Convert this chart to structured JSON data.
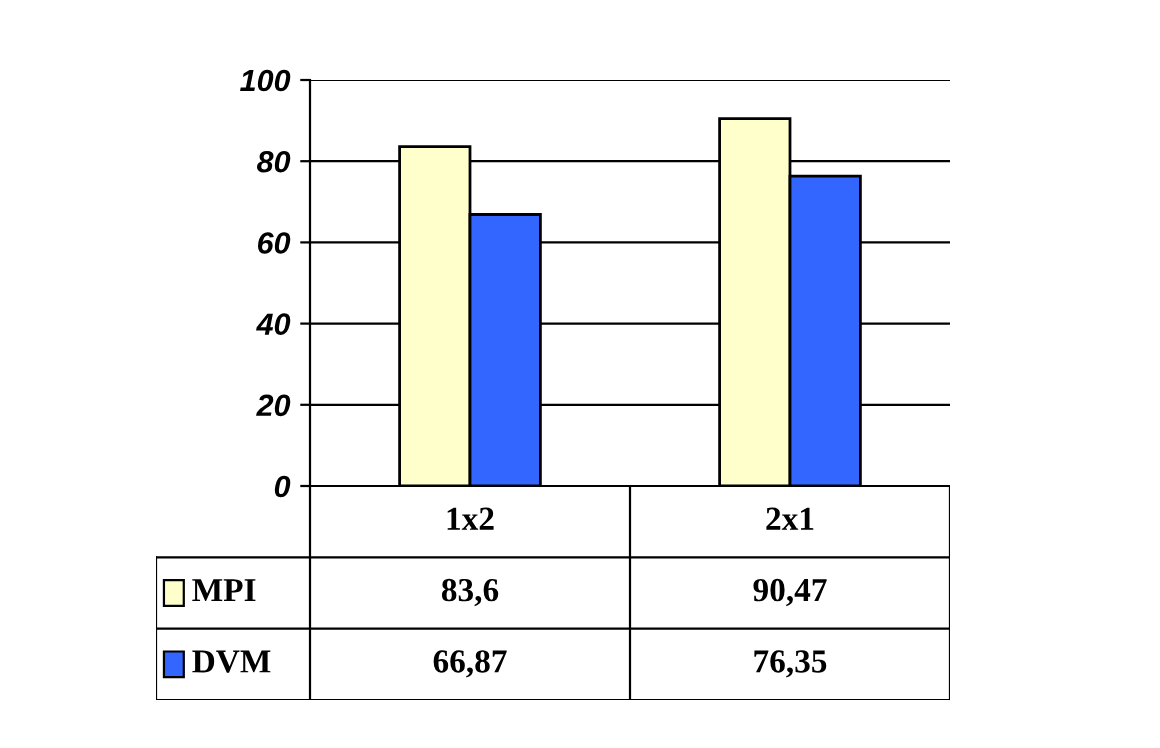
{
  "chart_data": {
    "type": "bar",
    "categories": [
      "1x2",
      "2x1"
    ],
    "series": [
      {
        "name": "MPI",
        "color": "#ffffcc",
        "values": [
          83.6,
          90.47
        ],
        "value_labels": [
          "83,6",
          "90,47"
        ]
      },
      {
        "name": "DVM",
        "color": "#3366ff",
        "values": [
          66.87,
          76.35
        ],
        "value_labels": [
          "66,87",
          "76,35"
        ]
      }
    ],
    "ylim": [
      0,
      100
    ],
    "yticks": [
      0,
      20,
      40,
      60,
      80,
      100
    ],
    "grid": "y",
    "legend": "bottom left"
  }
}
